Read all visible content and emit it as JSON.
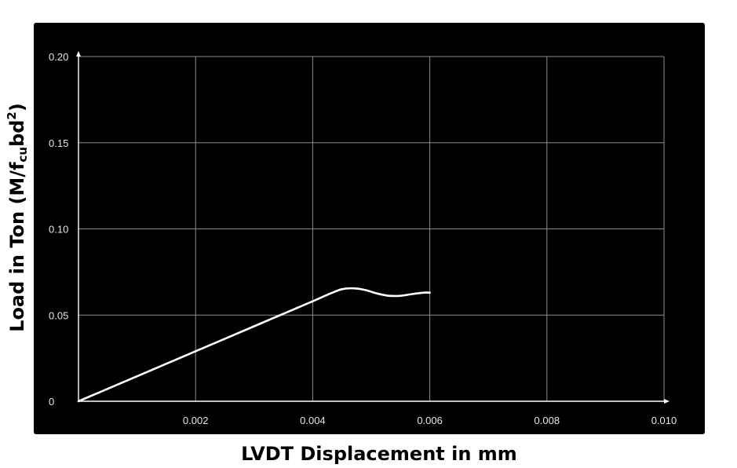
{
  "chart_data": {
    "type": "line",
    "title": "",
    "xlabel": "LVDT Displacement in mm",
    "ylabel": {
      "main": "Load in Ton (M/f",
      "subscript": "cu",
      "after": "bd",
      "superscript": "2",
      "close": ")"
    },
    "xlim": [
      0,
      0.01
    ],
    "ylim": [
      0,
      0.2
    ],
    "x_ticks": [
      {
        "value": 0.002,
        "label": "0.002"
      },
      {
        "value": 0.004,
        "label": "0.004"
      },
      {
        "value": 0.006,
        "label": "0.006"
      },
      {
        "value": 0.008,
        "label": "0.008"
      },
      {
        "value": 0.01,
        "label": "0.010"
      }
    ],
    "y_ticks": [
      {
        "value": 0,
        "label": "0"
      },
      {
        "value": 0.05,
        "label": "0.05"
      },
      {
        "value": 0.1,
        "label": "0.10"
      },
      {
        "value": 0.15,
        "label": "0.15"
      },
      {
        "value": 0.2,
        "label": "0.20"
      }
    ],
    "grid": true,
    "legend": "none",
    "colors": {
      "background": "#000000",
      "grid": "#8c8c8c",
      "axis": "#ffffff",
      "line": "#ffffff"
    },
    "series": [
      {
        "x": [
          0,
          0.001,
          0.002,
          0.003,
          0.004,
          0.0043,
          0.0045,
          0.0047,
          0.0049,
          0.0051,
          0.0053,
          0.0055,
          0.0057,
          0.0059,
          0.006
        ],
        "y": [
          0,
          0.0145,
          0.029,
          0.0435,
          0.058,
          0.0625,
          0.065,
          0.0655,
          0.0645,
          0.0625,
          0.0612,
          0.0612,
          0.0622,
          0.063,
          0.063
        ]
      }
    ]
  }
}
